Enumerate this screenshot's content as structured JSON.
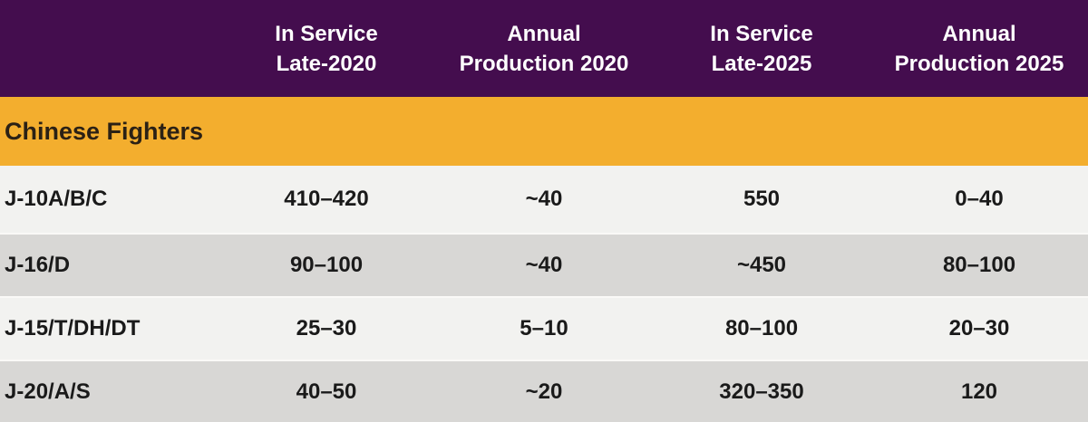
{
  "colors": {
    "header_bg": "#440D4E",
    "header_text": "#FFFFFF",
    "section_bg": "#F3AE2E",
    "section_text": "#2B2115",
    "row_light": "#F2F2F0",
    "row_dark": "#D8D7D5",
    "data_text": "#1A1A1A"
  },
  "headers": [
    {
      "line1": "In Service",
      "line2": "Late-2020"
    },
    {
      "line1": "Annual",
      "line2": "Production 2020"
    },
    {
      "line1": "In Service",
      "line2": "Late-2025"
    },
    {
      "line1": "Annual",
      "line2": "Production 2025"
    }
  ],
  "section": {
    "label": "Chinese Fighters"
  },
  "chart_data": {
    "type": "table",
    "title": "Chinese Fighters",
    "columns": [
      "",
      "In Service Late-2020",
      "Annual Production 2020",
      "In Service Late-2025",
      "Annual Production 2025"
    ],
    "rows": [
      [
        "J-10A/B/C",
        "410–420",
        "~40",
        "550",
        "0–40"
      ],
      [
        "J-16/D",
        "90–100",
        "~40",
        "~450",
        "80–100"
      ],
      [
        "J-15/T/DH/DT",
        "25–30",
        "5–10",
        "80–100",
        "20–30"
      ],
      [
        "J-20/A/S",
        "40–50",
        "~20",
        "320–350",
        "120"
      ]
    ]
  }
}
